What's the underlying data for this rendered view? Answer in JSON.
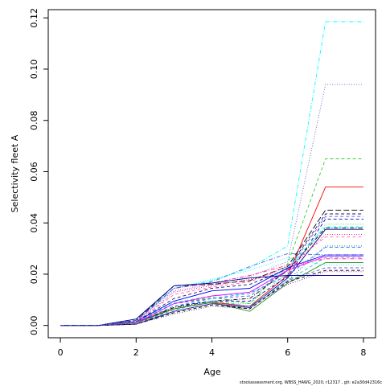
{
  "chart_data": {
    "type": "line",
    "title": "",
    "xlabel": "Age",
    "ylabel": "Selectivity fleet A",
    "xlim": [
      -0.32,
      8.32
    ],
    "ylim": [
      -0.0048,
      0.1232
    ],
    "x_ticks": [
      0,
      2,
      4,
      6,
      8
    ],
    "y_ticks": [
      0.0,
      0.02,
      0.04,
      0.06,
      0.08,
      0.1,
      0.12
    ],
    "y_tick_labels": [
      "0.00",
      "0.02",
      "0.04",
      "0.06",
      "0.08",
      "0.10",
      "0.12"
    ],
    "grid": false,
    "x": [
      0,
      1,
      2,
      3,
      4,
      5,
      6,
      7,
      8
    ],
    "series": [
      {
        "color": "#00ffff",
        "dash": "dashdot",
        "values": [
          0,
          0,
          0.0025,
          0.0145,
          0.0175,
          0.0225,
          0.031,
          0.1185,
          0.1185
        ]
      },
      {
        "color": "#6a5acd",
        "dash": "dotted",
        "values": [
          0,
          0,
          0.002,
          0.0135,
          0.016,
          0.019,
          0.025,
          0.094,
          0.094
        ]
      },
      {
        "color": "#32cd32",
        "dash": "dashed",
        "values": [
          0,
          0,
          0.0015,
          0.0085,
          0.011,
          0.0085,
          0.024,
          0.065,
          0.065
        ]
      },
      {
        "color": "#ff0000",
        "dash": "solid",
        "values": [
          0,
          0,
          0.0015,
          0.0065,
          0.009,
          0.0075,
          0.0195,
          0.054,
          0.054
        ]
      },
      {
        "color": "#000000",
        "dash": "longdash",
        "values": [
          0,
          0,
          0.002,
          0.0155,
          0.016,
          0.0175,
          0.023,
          0.045,
          0.045
        ]
      },
      {
        "color": "#191970",
        "dash": "dashed",
        "values": [
          0,
          0,
          0.0015,
          0.0105,
          0.0145,
          0.016,
          0.022,
          0.0435,
          0.0435
        ]
      },
      {
        "color": "#6a5acd",
        "dash": "dashed",
        "values": [
          0,
          0,
          0.001,
          0.0085,
          0.0105,
          0.0115,
          0.0215,
          0.0425,
          0.0425
        ]
      },
      {
        "color": "#0000cd",
        "dash": "dashed",
        "values": [
          0,
          0,
          0.001,
          0.0075,
          0.0095,
          0.0095,
          0.019,
          0.0415,
          0.0415
        ]
      },
      {
        "color": "#32cd32",
        "dash": "dotted",
        "values": [
          0,
          0,
          0.001,
          0.007,
          0.009,
          0.0085,
          0.0205,
          0.0395,
          0.0395
        ]
      },
      {
        "color": "#00ffff",
        "dash": "dashed",
        "values": [
          0,
          0,
          0.0015,
          0.009,
          0.0115,
          0.0125,
          0.0225,
          0.0385,
          0.0385
        ]
      },
      {
        "color": "#000000",
        "dash": "dashdot",
        "values": [
          0,
          0,
          0.001,
          0.007,
          0.0095,
          0.0105,
          0.0215,
          0.038,
          0.038
        ]
      },
      {
        "color": "#00008b",
        "dash": "solid",
        "values": [
          0,
          0,
          0.0005,
          0.0055,
          0.0085,
          0.007,
          0.0185,
          0.0375,
          0.0375
        ]
      },
      {
        "color": "#ff1493",
        "dash": "dotted",
        "values": [
          0,
          0,
          0.001,
          0.013,
          0.0155,
          0.018,
          0.0215,
          0.0355,
          0.0355
        ]
      },
      {
        "color": "#ff69b4",
        "dash": "dashed",
        "values": [
          0,
          0,
          0.0015,
          0.012,
          0.015,
          0.017,
          0.023,
          0.0345,
          0.0345
        ]
      },
      {
        "color": "#2f4f4f",
        "dash": "dotted",
        "values": [
          0,
          0,
          0.0005,
          0.0045,
          0.0075,
          0.0065,
          0.0175,
          0.031,
          0.031
        ]
      },
      {
        "color": "#1e90ff",
        "dash": "dashed",
        "values": [
          0,
          0,
          0.001,
          0.0075,
          0.0105,
          0.0125,
          0.0195,
          0.0305,
          0.0305
        ]
      },
      {
        "color": "#0000ff",
        "dash": "solid",
        "values": [
          0,
          0,
          0.0015,
          0.0095,
          0.0135,
          0.0145,
          0.0225,
          0.0275,
          0.0275
        ]
      },
      {
        "color": "#ff00ff",
        "dash": "solid",
        "values": [
          0,
          0,
          0.001,
          0.0085,
          0.0115,
          0.013,
          0.0215,
          0.027,
          0.027
        ]
      },
      {
        "color": "#00ced1",
        "dash": "dashed",
        "values": [
          0,
          0,
          0.001,
          0.006,
          0.0095,
          0.0075,
          0.0175,
          0.0265,
          0.0265
        ]
      },
      {
        "color": "#ff1493",
        "dash": "dashdot",
        "values": [
          0,
          0,
          0.0015,
          0.0145,
          0.0165,
          0.0195,
          0.0235,
          0.026,
          0.026
        ]
      },
      {
        "color": "#228b22",
        "dash": "solid",
        "values": [
          0,
          0,
          0.001,
          0.0065,
          0.009,
          0.0055,
          0.0165,
          0.0245,
          0.0245
        ]
      },
      {
        "color": "#00ffff",
        "dash": "dotted",
        "values": [
          0,
          0,
          0.001,
          0.0145,
          0.018,
          0.0215,
          0.0265,
          0.0235,
          0.0235
        ]
      },
      {
        "color": "#6a5acd",
        "dash": "dashed",
        "values": [
          0,
          0,
          0.001,
          0.0055,
          0.0085,
          0.0065,
          0.0175,
          0.0225,
          0.0225
        ]
      },
      {
        "color": "#000000",
        "dash": "dashed",
        "values": [
          0,
          0,
          0.0005,
          0.005,
          0.008,
          0.0065,
          0.017,
          0.0215,
          0.0215
        ]
      },
      {
        "color": "#9400d3",
        "dash": "dotted",
        "values": [
          0,
          0,
          0.0005,
          0.0055,
          0.0085,
          0.0075,
          0.016,
          0.021,
          0.021
        ]
      },
      {
        "color": "#00008b",
        "dash": "solid",
        "values": [
          0,
          0,
          0.0025,
          0.0155,
          0.0165,
          0.0185,
          0.0195,
          0.0195,
          0.0195
        ]
      },
      {
        "color": "#4169e1",
        "dash": "dashdot",
        "values": [
          0,
          0,
          0.002,
          0.0145,
          0.017,
          0.023,
          0.028,
          0.0275,
          0.0275
        ]
      }
    ]
  },
  "footer": {
    "text": "stockassessment.org, WBSS_HAWG_2020, r12317 , git: e2a30d42316c"
  }
}
